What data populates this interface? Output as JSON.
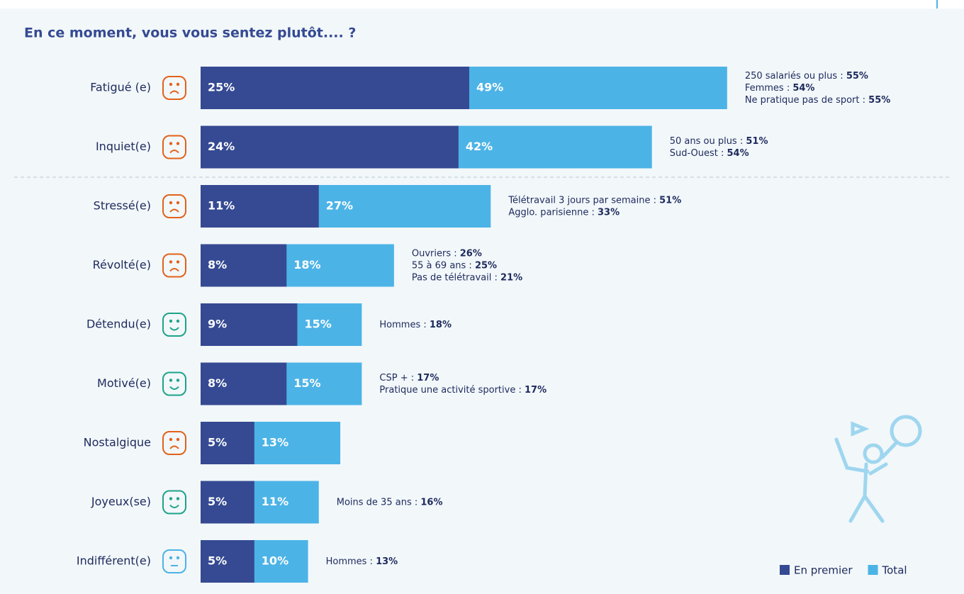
{
  "chart_data": {
    "type": "bar",
    "title": "En ce moment, vous vous sentez plutôt.... ?",
    "categories": [
      "Fatigué (e)",
      "Inquiet(e)",
      "Stressé(e)",
      "Révolté(e)",
      "Détendu(e)",
      "Motivé(e)",
      "Nostalgique",
      "Joyeux(se)",
      "Indifférent(e)"
    ],
    "series": [
      {
        "name": "Total",
        "color": "#4cb3e6",
        "values": [
          49,
          42,
          27,
          18,
          15,
          15,
          13,
          11,
          10
        ],
        "value_labels": [
          "49%",
          "42%",
          "27%",
          "18%",
          "15%",
          "15%",
          "13%",
          "11%",
          "10%"
        ]
      },
      {
        "name": "En premier",
        "color": "#354a92",
        "values": [
          25,
          24,
          11,
          8,
          9,
          8,
          5,
          5,
          5
        ],
        "value_labels": [
          "25%",
          "24%",
          "11%",
          "8%",
          "9%",
          "8%",
          "5%",
          "5%",
          "5%"
        ]
      }
    ],
    "annotations": [
      [
        {
          "text": "250 salariés ou plus :",
          "value": "55%"
        },
        {
          "text": "Femmes :",
          "value": "54%"
        },
        {
          "text": "Ne pratique pas de sport :",
          "value": "55%"
        }
      ],
      [
        {
          "text": "50 ans ou plus :",
          "value": "51%"
        },
        {
          "text": "Sud-Ouest :",
          "value": "54%"
        }
      ],
      [
        {
          "text": "Télétravail 3 jours par semaine :",
          "value": "51%"
        },
        {
          "text": "Agglo. parisienne :",
          "value": "33%"
        }
      ],
      [
        {
          "text": "Ouvriers :",
          "value": "26%"
        },
        {
          "text": "55 à 69 ans :",
          "value": "25%"
        },
        {
          "text": "Pas de télétravail :",
          "value": "21%"
        }
      ],
      [
        {
          "text": "Hommes :",
          "value": "18%"
        }
      ],
      [
        {
          "text": "CSP + :",
          "value": "17%"
        },
        {
          "text": "Pratique une activité sportive :",
          "value": "17%"
        }
      ],
      [],
      [
        {
          "text": "Moins de 35 ans :",
          "value": "16%"
        }
      ],
      [
        {
          "text": "Hommes :",
          "value": "13%"
        }
      ]
    ]
  }
}
